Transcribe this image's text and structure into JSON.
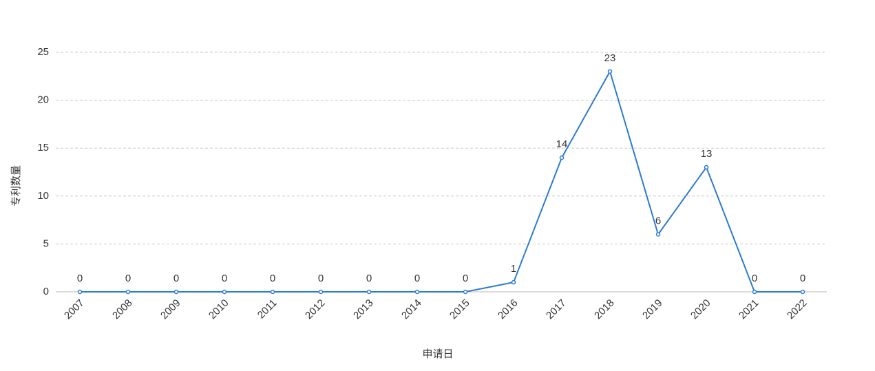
{
  "chart_data": {
    "type": "line",
    "x_label": "申请日",
    "y_label": "专利数量",
    "categories": [
      "2007",
      "2008",
      "2009",
      "2010",
      "2011",
      "2012",
      "2013",
      "2014",
      "2015",
      "2016",
      "2017",
      "2018",
      "2019",
      "2020",
      "2021",
      "2022"
    ],
    "values": [
      0,
      0,
      0,
      0,
      0,
      0,
      0,
      0,
      0,
      1,
      14,
      23,
      6,
      13,
      0,
      0
    ],
    "color": "#2b7bd0",
    "ylim": [
      0,
      25
    ],
    "yticks": [
      0,
      5,
      10,
      15,
      20,
      25
    ],
    "grid": true
  }
}
